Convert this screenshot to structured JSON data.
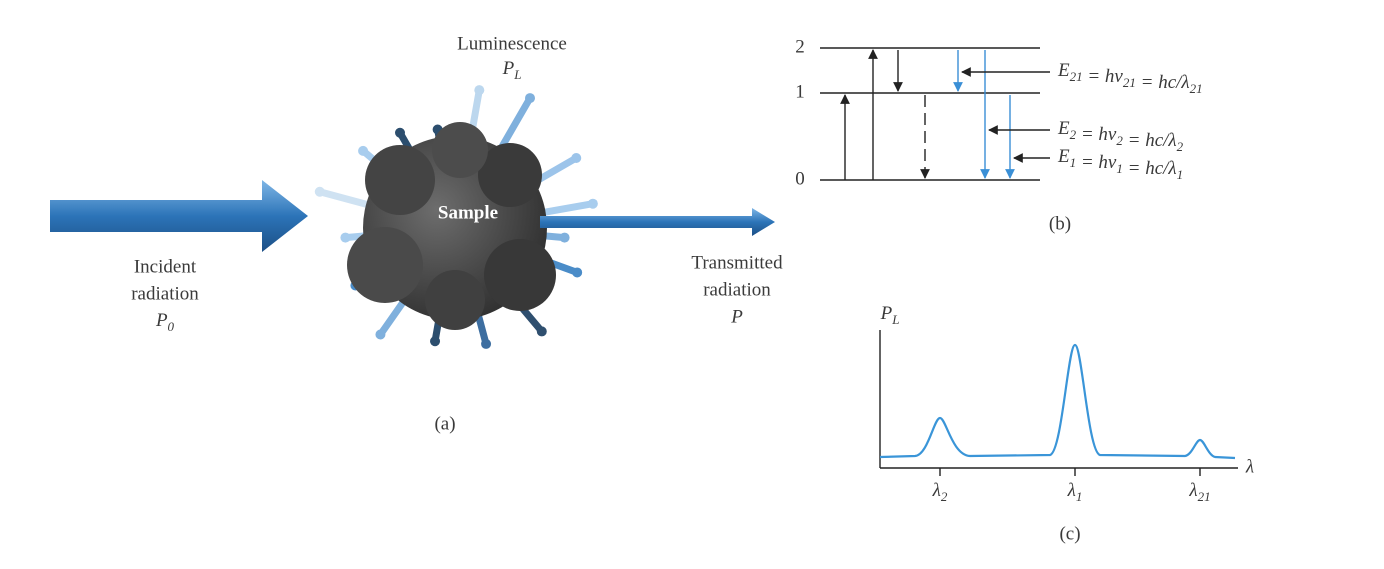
{
  "panel_a": {
    "luminescence": "Luminescence",
    "luminescence_symbol": {
      "main": "P",
      "sub": "L"
    },
    "sample": "Sample",
    "incident": [
      "Incident",
      "radiation"
    ],
    "incident_symbol": {
      "main": "P",
      "sub": "0"
    },
    "transmitted": [
      "Transmitted",
      "radiation"
    ],
    "transmitted_symbol": "P",
    "label": "(a)"
  },
  "panel_b": {
    "levels": [
      "2",
      "1",
      "0"
    ],
    "equations": [
      [
        [
          "E",
          "21"
        ],
        [
          " = hν",
          "21"
        ],
        [
          " = hc/λ",
          "21"
        ]
      ],
      [
        [
          "E",
          "2"
        ],
        [
          " = hν",
          "2"
        ],
        [
          " = hc/λ",
          "2"
        ]
      ],
      [
        [
          "E",
          "1"
        ],
        [
          " = hν",
          "1"
        ],
        [
          " = hc/λ",
          "1"
        ]
      ]
    ],
    "label": "(b)"
  },
  "panel_c": {
    "y_axis": {
      "main": "P",
      "sub": "L"
    },
    "x_axis": "λ",
    "peaks": [
      {
        "main": "λ",
        "sub": "2"
      },
      {
        "main": "λ",
        "sub": "1"
      },
      {
        "main": "λ",
        "sub": "21"
      }
    ],
    "label": "(c)"
  }
}
